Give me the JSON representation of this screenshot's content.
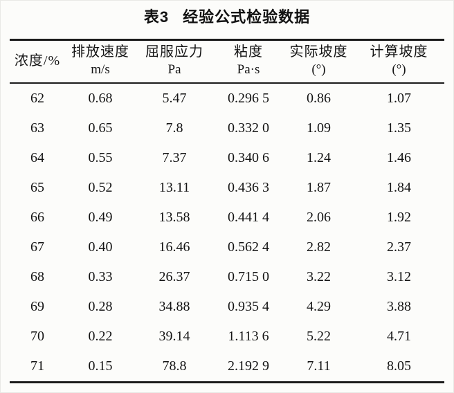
{
  "title": {
    "number": "表3",
    "text": "经验公式检验数据"
  },
  "table": {
    "columns": [
      {
        "label": "浓度/%",
        "unit": ""
      },
      {
        "label": "排放速度",
        "unit": "m/s"
      },
      {
        "label": "屈服应力",
        "unit": "Pa"
      },
      {
        "label": "粘度",
        "unit": "Pa·s"
      },
      {
        "label": "实际坡度",
        "unit": "(°)"
      },
      {
        "label": "计算坡度",
        "unit": "(°)"
      }
    ],
    "rows": [
      [
        "62",
        "0.68",
        "5.47",
        "0.296 5",
        "0.86",
        "1.07"
      ],
      [
        "63",
        "0.65",
        "7.8",
        "0.332 0",
        "1.09",
        "1.35"
      ],
      [
        "64",
        "0.55",
        "7.37",
        "0.340 6",
        "1.24",
        "1.46"
      ],
      [
        "65",
        "0.52",
        "13.11",
        "0.436 3",
        "1.87",
        "1.84"
      ],
      [
        "66",
        "0.49",
        "13.58",
        "0.441 4",
        "2.06",
        "1.92"
      ],
      [
        "67",
        "0.40",
        "16.46",
        "0.562 4",
        "2.82",
        "2.37"
      ],
      [
        "68",
        "0.33",
        "26.37",
        "0.715 0",
        "3.22",
        "3.12"
      ],
      [
        "69",
        "0.28",
        "34.88",
        "0.935 4",
        "4.29",
        "3.88"
      ],
      [
        "70",
        "0.22",
        "39.14",
        "1.113 6",
        "5.22",
        "4.71"
      ],
      [
        "71",
        "0.15",
        "78.8",
        "2.192 9",
        "7.11",
        "8.05"
      ]
    ]
  },
  "colors": {
    "paper_background": "#fcfcfa",
    "text": "#141414",
    "rule": "#1b1b1b"
  }
}
